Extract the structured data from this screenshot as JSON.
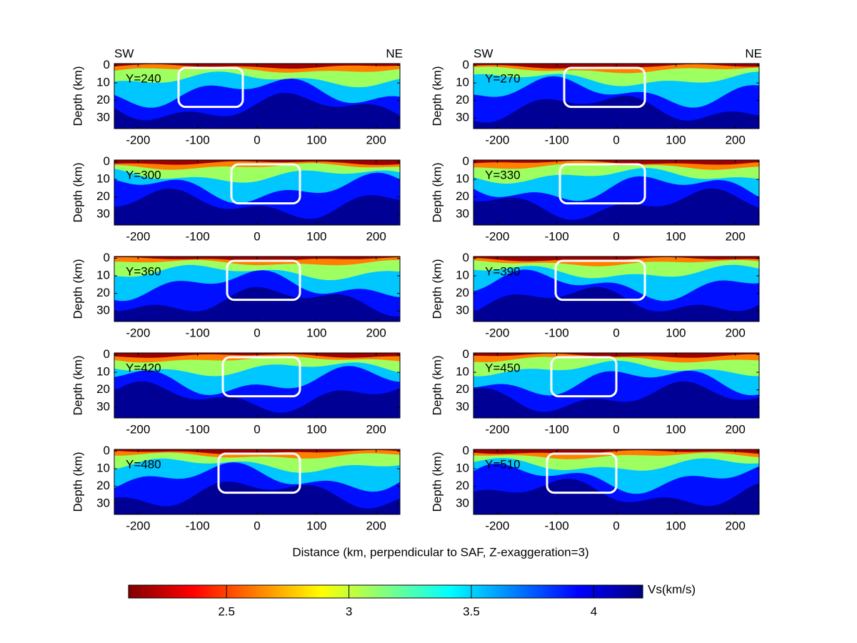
{
  "chart_data": {
    "type": "contour",
    "xlabel": "Distance (km, perpendicular to SAF, Z-exaggeration=3)",
    "ylabel": "Depth (km)",
    "xlim": [
      -240,
      240
    ],
    "ylim": [
      -1,
      36
    ],
    "y_reversed": true,
    "xticks": [
      -200,
      -100,
      0,
      100,
      200
    ],
    "yticks": [
      0,
      10,
      20,
      30
    ],
    "direction_labels": [
      "SW",
      "NE"
    ],
    "panels": [
      {
        "title": "Y=240"
      },
      {
        "title": "Y=270"
      },
      {
        "title": "Y=300"
      },
      {
        "title": "Y=330"
      },
      {
        "title": "Y=360"
      },
      {
        "title": "Y=390"
      },
      {
        "title": "Y=420"
      },
      {
        "title": "Y=450"
      },
      {
        "title": "Y=480"
      },
      {
        "title": "Y=510"
      }
    ],
    "colorbar": {
      "label": "Vs(km/s)",
      "lim": [
        2.1,
        4.2
      ],
      "ticks": [
        2.5,
        3,
        3.5,
        4
      ],
      "colors": [
        "#800000",
        "#ff0000",
        "#ff8000",
        "#ffff00",
        "#80ff80",
        "#00ffff",
        "#0080ff",
        "#0000ff",
        "#000080"
      ]
    }
  }
}
